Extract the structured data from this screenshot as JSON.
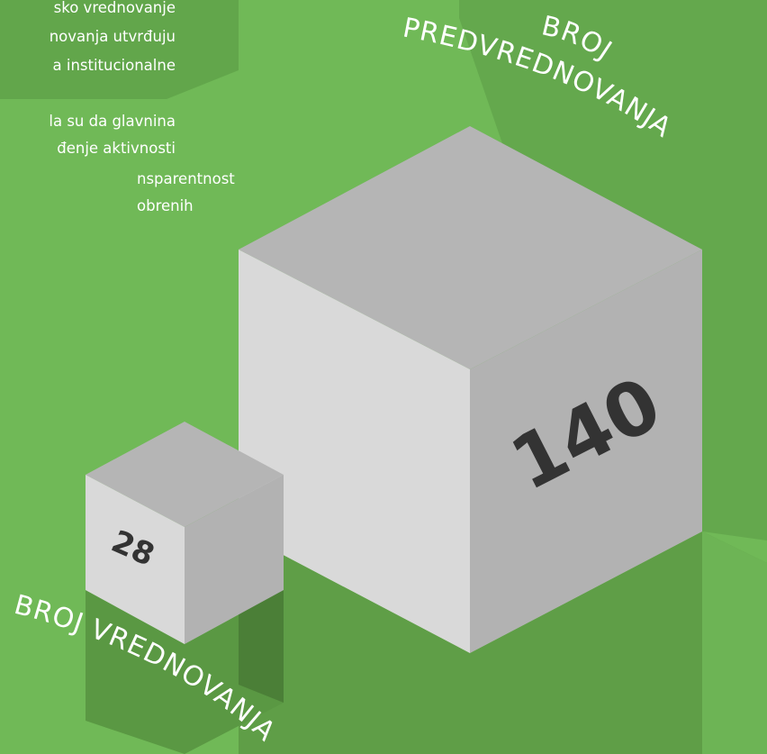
{
  "paragraph": {
    "lines": [
      "sko vrednovanje",
      "novanja utvrđuju",
      "a institucionalne",
      "la su da glavnina",
      "đenje aktivnosti",
      "nsparentnost",
      "obrenih"
    ]
  },
  "cubes": [
    {
      "label_top": "BROJ",
      "label": "PREDVREDNOVANJA",
      "value": "140"
    },
    {
      "label": "BROJ VREDNOVANJA",
      "value": "28"
    }
  ]
}
